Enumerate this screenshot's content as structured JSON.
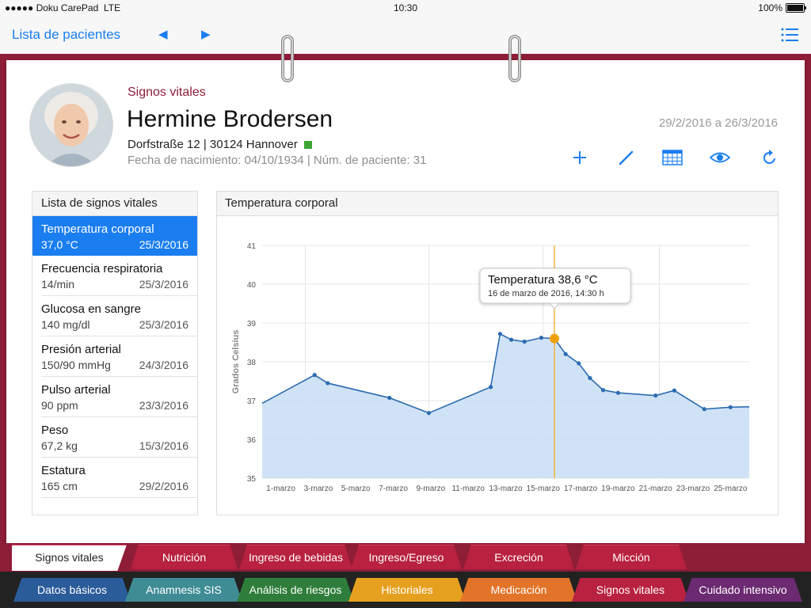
{
  "status_bar": {
    "carrier": "●●●●● Doku CarePad",
    "network": "LTE",
    "time": "10:30",
    "battery": "100%",
    "battery_level": 1.0
  },
  "nav": {
    "back_label": "Lista de pacientes",
    "prev_glyph": "◀",
    "next_glyph": "▶",
    "menu_icon": "list-icon"
  },
  "patient": {
    "section_title": "Signos vitales",
    "name": "Hermine Brodersen",
    "address": "Dorfstraße 12 | 30124 Hannover",
    "status_color": "#3fa535",
    "dob_line": "Fecha de nacimiento: 04/10/1934 | Núm. de paciente: 31",
    "date_range": "29/2/2016 a 26/3/2016"
  },
  "toolbar_icons": [
    "plus-icon",
    "pencil-icon",
    "calendar-grid-icon",
    "eye-icon",
    "refresh-icon"
  ],
  "vitals_list": {
    "title": "Lista de signos vitales",
    "items": [
      {
        "name": "Temperatura corporal",
        "value": "37,0 °C",
        "date": "25/3/2016",
        "active": true
      },
      {
        "name": "Frecuencia respiratoria",
        "value": "14/min",
        "date": "25/3/2016"
      },
      {
        "name": "Glucosa en sangre",
        "value": "140 mg/dl",
        "date": "25/3/2016"
      },
      {
        "name": "Presión arterial",
        "value": "150/90 mmHg",
        "date": "24/3/2016"
      },
      {
        "name": "Pulso arterial",
        "value": "90 ppm",
        "date": "23/3/2016"
      },
      {
        "name": "Peso",
        "value": "67,2 kg",
        "date": "15/3/2016"
      },
      {
        "name": "Estatura",
        "value": "165 cm",
        "date": "29/2/2016"
      }
    ]
  },
  "chart_panel": {
    "title": "Temperatura corporal"
  },
  "chart_data": {
    "type": "area",
    "title": "",
    "ylabel": "Grados Celsius",
    "xlabel": "",
    "ylim": [
      35,
      41
    ],
    "yticks": [
      "35",
      "36",
      "37",
      "38",
      "39",
      "40",
      "41"
    ],
    "xlim": [
      0,
      26
    ],
    "xticks": [
      {
        "pos": 1,
        "label": "1-marzo"
      },
      {
        "pos": 3,
        "label": "3-marzo"
      },
      {
        "pos": 5,
        "label": "5-marzo"
      },
      {
        "pos": 7,
        "label": "7-marzo"
      },
      {
        "pos": 9,
        "label": "9-marzo"
      },
      {
        "pos": 11,
        "label": "11-marzo"
      },
      {
        "pos": 13,
        "label": "13-marzo"
      },
      {
        "pos": 15,
        "label": "15-marzo"
      },
      {
        "pos": 17,
        "label": "17-marzo"
      },
      {
        "pos": 19,
        "label": "19-marzo"
      },
      {
        "pos": 21,
        "label": "21-marzo"
      },
      {
        "pos": 23,
        "label": "23-marzo"
      },
      {
        "pos": 25,
        "label": "25-marzo"
      }
    ],
    "series": [
      {
        "x": [
          0,
          2.8,
          3.5,
          6.8,
          8.9,
          12.2,
          12.7,
          13.3,
          14.0,
          14.9,
          15.6,
          16.2,
          16.9,
          17.5,
          18.2,
          19.0,
          21.0,
          22.0,
          23.6,
          25.0,
          26.0
        ],
        "y": [
          36.93,
          37.66,
          37.45,
          37.07,
          36.68,
          37.35,
          38.72,
          38.57,
          38.52,
          38.62,
          38.6,
          38.2,
          37.96,
          37.58,
          37.27,
          37.2,
          37.13,
          37.26,
          36.78,
          36.83,
          36.84
        ]
      }
    ],
    "highlight": {
      "x": 15.6,
      "y": 38.6
    },
    "tooltip": {
      "title": "Temperatura 38,6 °C",
      "subtitle": "16 de marzo de 2016, 14:30 h"
    },
    "colors": {
      "line": "#2b6cb0",
      "fill": "#c8ddf5",
      "marker": "#f0a10a",
      "cursor": "#f0b33a",
      "grid": "#e6e6e6"
    }
  },
  "tabs_top": [
    {
      "label": "Signos vitales",
      "active": true
    },
    {
      "label": "Nutrición"
    },
    {
      "label": "Ingreso de bebidas"
    },
    {
      "label": "Ingreso/Egreso"
    },
    {
      "label": "Excreción"
    },
    {
      "label": "Micción"
    }
  ],
  "tabs_bottom": [
    {
      "label": "Datos básicos",
      "color": "#2b5c9a"
    },
    {
      "label": "Anamnesis SIS",
      "color": "#3f8c95"
    },
    {
      "label": "Análisis de riesgos",
      "color": "#2f7d3b"
    },
    {
      "label": "Historiales",
      "color": "#e6a020"
    },
    {
      "label": "Medicación",
      "color": "#e2742a"
    },
    {
      "label": "Signos vitales",
      "color": "#b8213f"
    },
    {
      "label": "Cuidado intensivo",
      "color": "#6c2a72"
    }
  ]
}
